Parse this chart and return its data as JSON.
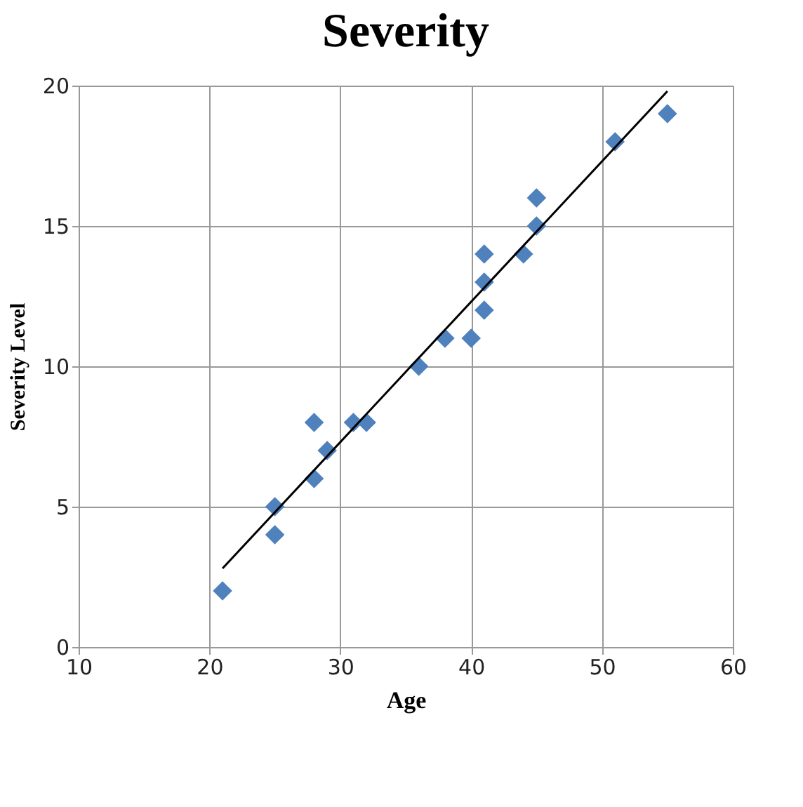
{
  "chart_data": {
    "type": "scatter",
    "title": "Severity",
    "xlabel": "Age",
    "ylabel": "Severity Level",
    "x": [
      21,
      25,
      25,
      28,
      28,
      29,
      31,
      32,
      36,
      38,
      40,
      41,
      41,
      41,
      44,
      45,
      45,
      51,
      55
    ],
    "series": [
      {
        "color": "#4f81bd",
        "marker": "diamond",
        "values": [
          2,
          5,
          4,
          8,
          6,
          7,
          8,
          8,
          10,
          11,
          11,
          14,
          13,
          12,
          14,
          16,
          15,
          18,
          19
        ]
      },
      {
        "type": "line",
        "color": "#000000",
        "x": [
          21,
          55
        ],
        "values": [
          2.8,
          19.8
        ],
        "marker": "none",
        "line_style": "solid"
      }
    ],
    "xlim": [
      10,
      60
    ],
    "xticks": [
      10,
      20,
      30,
      40,
      50,
      60
    ],
    "ylim": [
      0,
      20
    ],
    "yticks": [
      0,
      5,
      10,
      15,
      20
    ],
    "grid": true,
    "legend": false
  }
}
